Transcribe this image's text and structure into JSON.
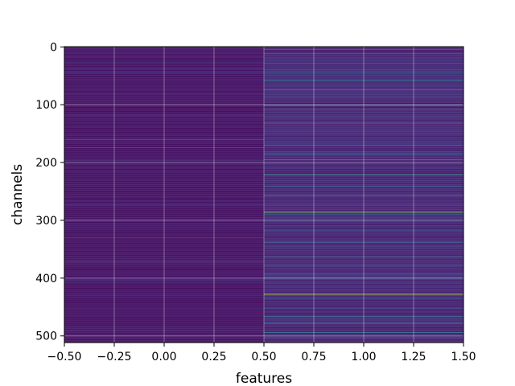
{
  "chart_data": {
    "type": "heatmap",
    "xlabel": "features",
    "ylabel": "channels",
    "columns": 2,
    "rows": 512,
    "x_extent": [
      -0.5,
      1.5
    ],
    "y_extent": [
      -0.5,
      511.5
    ],
    "y_inverted": true,
    "grid": true,
    "colormap": "viridis",
    "x_ticks": [
      -0.5,
      -0.25,
      0.0,
      0.25,
      0.5,
      0.75,
      1.0,
      1.25,
      1.5
    ],
    "x_tick_labels": [
      "−0.50",
      "−0.25",
      "0.00",
      "0.25",
      "0.50",
      "0.75",
      "1.00",
      "1.25",
      "1.50"
    ],
    "y_ticks": [
      0,
      100,
      200,
      300,
      400,
      500
    ],
    "y_tick_labels": [
      "0",
      "100",
      "200",
      "300",
      "400",
      "500"
    ],
    "column_0": {
      "base_value": 0.07,
      "highlights": [
        {
          "row": 27,
          "value": 0.22
        },
        {
          "row": 38,
          "value": 0.18
        },
        {
          "row": 44,
          "value": 0.2
        },
        {
          "row": 118,
          "value": 0.2
        },
        {
          "row": 160,
          "value": 0.3
        },
        {
          "row": 174,
          "value": 0.22
        },
        {
          "row": 196,
          "value": 0.2
        },
        {
          "row": 272,
          "value": 0.18
        },
        {
          "row": 330,
          "value": 0.18
        },
        {
          "row": 372,
          "value": 0.28
        },
        {
          "row": 404,
          "value": 0.2
        },
        {
          "row": 462,
          "value": 0.18
        },
        {
          "row": 492,
          "value": 0.2
        }
      ]
    },
    "column_1": {
      "base_value": 0.14,
      "highlights": [
        {
          "row": 4,
          "value": 0.5
        },
        {
          "row": 12,
          "value": 0.35
        },
        {
          "row": 29,
          "value": 0.35
        },
        {
          "row": 44,
          "value": 0.55
        },
        {
          "row": 58,
          "value": 0.6
        },
        {
          "row": 74,
          "value": 0.4
        },
        {
          "row": 101,
          "value": 0.55
        },
        {
          "row": 108,
          "value": 0.4
        },
        {
          "row": 132,
          "value": 0.38
        },
        {
          "row": 170,
          "value": 0.42
        },
        {
          "row": 186,
          "value": 0.5
        },
        {
          "row": 195,
          "value": 0.45
        },
        {
          "row": 221,
          "value": 0.72
        },
        {
          "row": 241,
          "value": 0.4
        },
        {
          "row": 257,
          "value": 0.62
        },
        {
          "row": 286,
          "value": 0.9
        },
        {
          "row": 290,
          "value": 0.55
        },
        {
          "row": 318,
          "value": 0.42
        },
        {
          "row": 338,
          "value": 0.4
        },
        {
          "row": 363,
          "value": 0.4
        },
        {
          "row": 378,
          "value": 0.38
        },
        {
          "row": 392,
          "value": 0.45
        },
        {
          "row": 400,
          "value": 0.42
        },
        {
          "row": 428,
          "value": 0.95
        },
        {
          "row": 436,
          "value": 0.4
        },
        {
          "row": 452,
          "value": 0.38
        },
        {
          "row": 466,
          "value": 0.45
        },
        {
          "row": 478,
          "value": 0.5
        },
        {
          "row": 494,
          "value": 0.55
        },
        {
          "row": 502,
          "value": 0.4
        }
      ]
    }
  }
}
